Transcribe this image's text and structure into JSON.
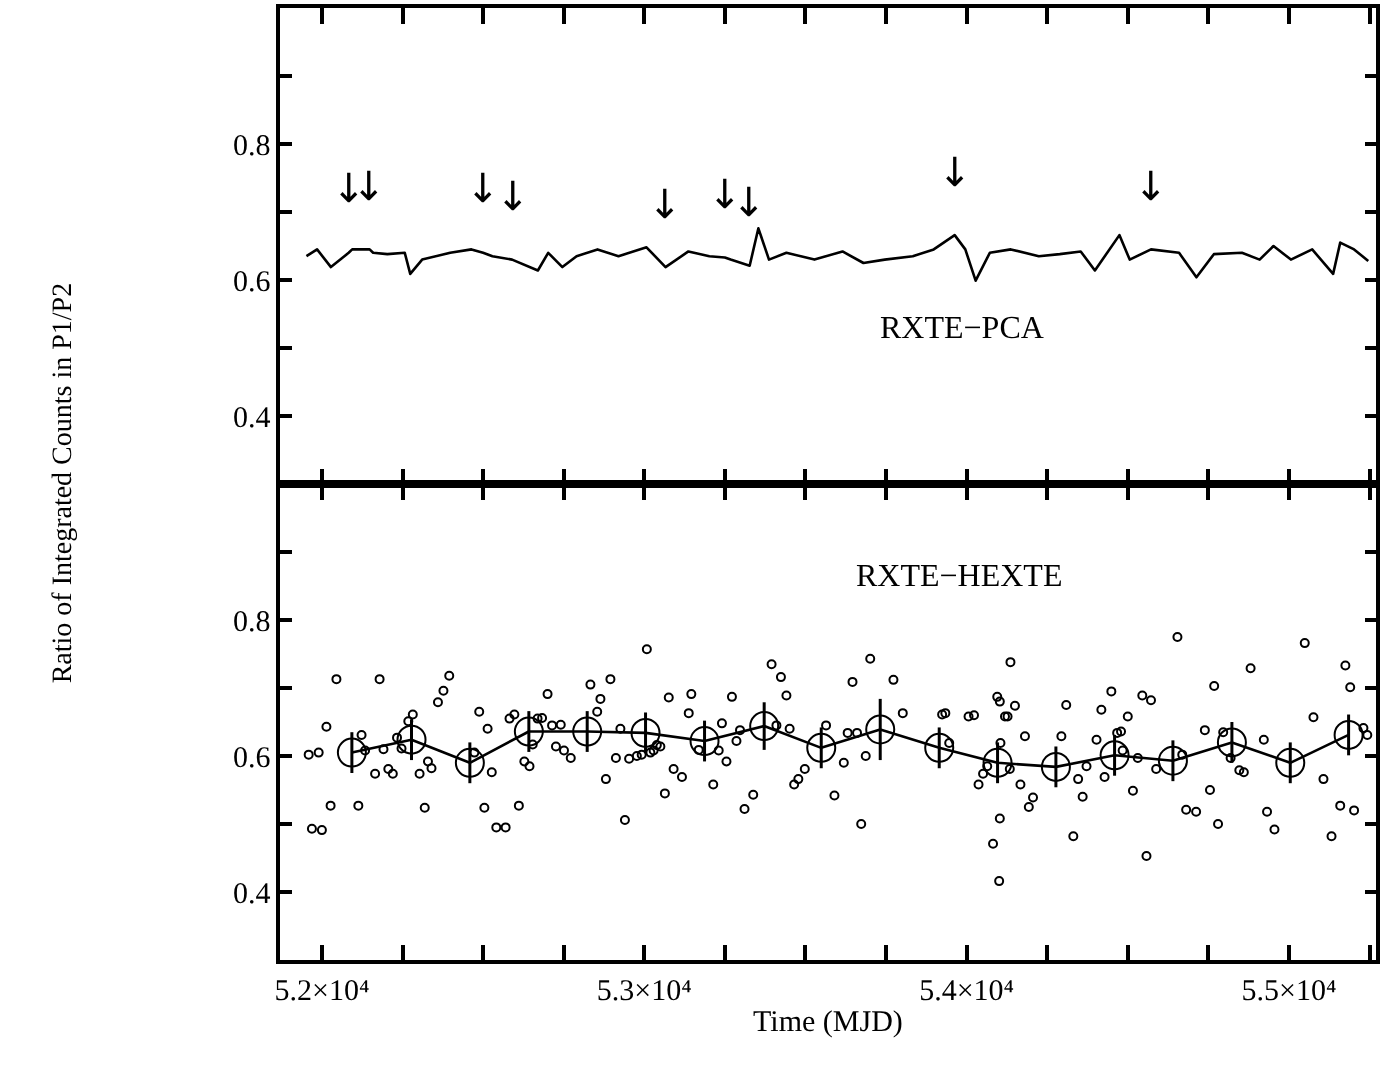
{
  "chart_data": [
    {
      "type": "line",
      "ylabel": "Ratio of Integrated Counts in P1/P2",
      "xlim": [
        51870,
        55270
      ],
      "ylim": [
        0.3,
        1.0
      ],
      "xticks": [
        {
          "value": 52000,
          "label": null
        },
        {
          "value": 52250,
          "label": null
        },
        {
          "value": 52500,
          "label": null
        },
        {
          "value": 52750,
          "label": null
        },
        {
          "value": 53000,
          "label": null
        },
        {
          "value": 53250,
          "label": null
        },
        {
          "value": 53500,
          "label": null
        },
        {
          "value": 53750,
          "label": null
        },
        {
          "value": 54000,
          "label": null
        },
        {
          "value": 54250,
          "label": null
        },
        {
          "value": 54500,
          "label": null
        },
        {
          "value": 54750,
          "label": null
        },
        {
          "value": 55000,
          "label": null
        },
        {
          "value": 55250,
          "label": null
        }
      ],
      "yticks": [
        0.4,
        {
          "value": 0.5,
          "label": null
        },
        0.6,
        {
          "value": 0.7,
          "label": null
        },
        0.8,
        {
          "value": 0.9,
          "label": null
        }
      ],
      "tick_labels": "y",
      "series": [
        {
          "color": "#000000",
          "marker": "none",
          "line_style": "solid",
          "x": [
            51952,
            51985,
            52028,
            52083,
            52094,
            52148,
            52159,
            52203,
            52257,
            52274,
            52311,
            52398,
            52464,
            52500,
            52529,
            52590,
            52670,
            52702,
            52746,
            52790,
            52855,
            52920,
            53007,
            53066,
            53137,
            53202,
            53250,
            53268,
            53327,
            53354,
            53387,
            53441,
            53528,
            53615,
            53680,
            53746,
            53833,
            53898,
            53963,
            53996,
            54028,
            54072,
            54137,
            54224,
            54289,
            54354,
            54398,
            54474,
            54506,
            54572,
            54659,
            54713,
            54767,
            54854,
            54909,
            54952,
            55006,
            55072,
            55137,
            55159,
            55202,
            55246
          ],
          "values": [
            0.635,
            0.645,
            0.619,
            0.64,
            0.645,
            0.645,
            0.64,
            0.638,
            0.64,
            0.609,
            0.63,
            0.64,
            0.645,
            0.64,
            0.635,
            0.63,
            0.614,
            0.64,
            0.619,
            0.635,
            0.645,
            0.635,
            0.648,
            0.619,
            0.642,
            0.635,
            0.633,
            0.63,
            0.621,
            0.676,
            0.63,
            0.64,
            0.63,
            0.642,
            0.625,
            0.63,
            0.635,
            0.645,
            0.666,
            0.645,
            0.599,
            0.64,
            0.645,
            0.635,
            0.638,
            0.642,
            0.614,
            0.666,
            0.63,
            0.645,
            0.64,
            0.604,
            0.638,
            0.64,
            0.63,
            0.65,
            0.63,
            0.645,
            0.609,
            0.655,
            0.645,
            0.628
          ]
        }
      ],
      "annotations": [
        "RXTE−PCA",
        {
          "text": "↓",
          "x": 52083,
          "y": 0.64
        },
        {
          "text": "↓",
          "x": 52148,
          "y": 0.645
        },
        {
          "text": "↓",
          "x": 52500,
          "y": 0.64
        },
        {
          "text": "↓",
          "x": 52590,
          "y": 0.63
        },
        {
          "text": "↓",
          "x": 53066,
          "y": 0.619
        },
        {
          "text": "↓",
          "x": 53250,
          "y": 0.633
        },
        {
          "text": "↓",
          "x": 53327,
          "y": 0.621
        },
        {
          "text": "↓",
          "x": 53963,
          "y": 0.666
        },
        {
          "text": "↓",
          "x": 54572,
          "y": 0.645
        }
      ]
    },
    {
      "type": "scatter",
      "xlabel": "Time (MJD)",
      "xlim": [
        51870,
        55270
      ],
      "ylim": [
        0.3,
        1.0
      ],
      "xticks": [
        {
          "value": 52000,
          "label": "5.2×10⁴"
        },
        {
          "value": 52250,
          "label": null
        },
        {
          "value": 52500,
          "label": null
        },
        {
          "value": 52750,
          "label": null
        },
        {
          "value": 53000,
          "label": "5.3×10⁴"
        },
        {
          "value": 53250,
          "label": null
        },
        {
          "value": 53500,
          "label": null
        },
        {
          "value": 53750,
          "label": null
        },
        {
          "value": 54000,
          "label": "5.4×10⁴"
        },
        {
          "value": 54250,
          "label": null
        },
        {
          "value": 54500,
          "label": null
        },
        {
          "value": 54750,
          "label": null
        },
        {
          "value": 55000,
          "label": "5.5×10⁴"
        },
        {
          "value": 55250,
          "label": null
        }
      ],
      "yticks": [
        0.4,
        {
          "value": 0.5,
          "label": null
        },
        0.6,
        {
          "value": 0.7,
          "label": null
        },
        0.8,
        {
          "value": 0.9,
          "label": null
        }
      ],
      "series": [
        {
          "type": "scatter",
          "color": "#000000",
          "marker": "circle",
          "x": [
            51959,
            51990,
            51969,
            52000,
            52014,
            52027,
            52045,
            52113,
            52123,
            52134,
            52165,
            52179,
            52191,
            52206,
            52220,
            52233,
            52247,
            52268,
            52282,
            52303,
            52319,
            52329,
            52340,
            52360,
            52377,
            52395,
            52473,
            52488,
            52504,
            52514,
            52527,
            52541,
            52570,
            52582,
            52597,
            52611,
            52628,
            52644,
            52654,
            52669,
            52683,
            52700,
            52714,
            52726,
            52741,
            52751,
            52772,
            52833,
            52854,
            52864,
            52881,
            52895,
            52912,
            52926,
            52940,
            52953,
            52977,
            52992,
            53008,
            53019,
            53029,
            53039,
            53050,
            53064,
            53076,
            53091,
            53117,
            53138,
            53146,
            53169,
            53214,
            53231,
            53241,
            53255,
            53272,
            53286,
            53297,
            53311,
            53338,
            53395,
            53410,
            53424,
            53441,
            53451,
            53465,
            53478,
            53498,
            53564,
            53590,
            53619,
            53631,
            53660,
            53673,
            53687,
            53646,
            53701,
            53773,
            53802,
            53934,
            53924,
            53946,
            54006,
            54023,
            54037,
            54051,
            54064,
            54082,
            54101,
            54095,
            54103,
            54105,
            54103,
            54119,
            54127,
            54136,
            54134,
            54150,
            54167,
            54181,
            54193,
            54206,
            54294,
            54309,
            54331,
            54346,
            54360,
            54372,
            54403,
            54418,
            54428,
            54449,
            54467,
            54479,
            54484,
            54500,
            54516,
            54531,
            54545,
            54558,
            54572,
            54588,
            54654,
            54669,
            54681,
            54712,
            54739,
            54755,
            54768,
            54780,
            54796,
            54819,
            54846,
            54860,
            54881,
            54922,
            54932,
            54955,
            55049,
            55076,
            55107,
            55132,
            55159,
            55175,
            55190,
            55202,
            55231,
            55243
          ],
          "values": [
            0.602,
            0.605,
            0.493,
            0.491,
            0.643,
            0.527,
            0.713,
            0.527,
            0.631,
            0.608,
            0.574,
            0.713,
            0.61,
            0.581,
            0.574,
            0.627,
            0.611,
            0.651,
            0.661,
            0.574,
            0.524,
            0.592,
            0.582,
            0.679,
            0.696,
            0.718,
            0.605,
            0.665,
            0.524,
            0.64,
            0.576,
            0.495,
            0.495,
            0.655,
            0.661,
            0.527,
            0.592,
            0.585,
            0.617,
            0.655,
            0.656,
            0.691,
            0.645,
            0.614,
            0.646,
            0.608,
            0.597,
            0.705,
            0.665,
            0.684,
            0.566,
            0.713,
            0.597,
            0.64,
            0.506,
            0.596,
            0.6,
            0.602,
            0.757,
            0.605,
            0.608,
            0.616,
            0.614,
            0.545,
            0.686,
            0.581,
            0.569,
            0.663,
            0.691,
            0.609,
            0.558,
            0.608,
            0.648,
            0.592,
            0.687,
            0.622,
            0.638,
            0.522,
            0.543,
            0.735,
            0.645,
            0.716,
            0.689,
            0.64,
            0.558,
            0.566,
            0.581,
            0.645,
            0.542,
            0.59,
            0.634,
            0.634,
            0.5,
            0.6,
            0.709,
            0.743,
            0.712,
            0.663,
            0.663,
            0.661,
            0.619,
            0.658,
            0.66,
            0.558,
            0.574,
            0.585,
            0.471,
            0.416,
            0.687,
            0.68,
            0.619,
            0.508,
            0.658,
            0.658,
            0.738,
            0.581,
            0.674,
            0.558,
            0.629,
            0.525,
            0.539,
            0.629,
            0.675,
            0.482,
            0.566,
            0.54,
            0.585,
            0.624,
            0.668,
            0.569,
            0.695,
            0.634,
            0.636,
            0.608,
            0.658,
            0.549,
            0.597,
            0.689,
            0.453,
            0.682,
            0.581,
            0.775,
            0.602,
            0.521,
            0.518,
            0.638,
            0.55,
            0.703,
            0.5,
            0.635,
            0.597,
            0.579,
            0.576,
            0.729,
            0.624,
            0.518,
            0.492,
            0.766,
            0.657,
            0.566,
            0.482,
            0.527,
            0.733,
            0.701,
            0.52,
            0.641,
            0.631
          ]
        },
        {
          "type": "line",
          "color": "#000000",
          "marker": "circle",
          "line_style": "solid",
          "x": [
            52093,
            52278,
            52459,
            52642,
            52823,
            53004,
            53187,
            53372,
            53549,
            53732,
            53915,
            54096,
            54277,
            54459,
            54640,
            54823,
            55004,
            55185
          ],
          "values": [
            0.605,
            0.624,
            0.59,
            0.636,
            0.636,
            0.634,
            0.622,
            0.644,
            0.612,
            0.639,
            0.612,
            0.59,
            0.584,
            0.601,
            0.593,
            0.62,
            0.59,
            0.631
          ],
          "errors": [
            0.03,
            0.03,
            0.03,
            0.03,
            0.03,
            0.03,
            0.03,
            0.035,
            0.03,
            0.045,
            0.03,
            0.03,
            0.03,
            0.03,
            0.03,
            0.03,
            0.03,
            0.03
          ]
        }
      ],
      "annotations": [
        "RXTE−HEXTE"
      ]
    }
  ]
}
